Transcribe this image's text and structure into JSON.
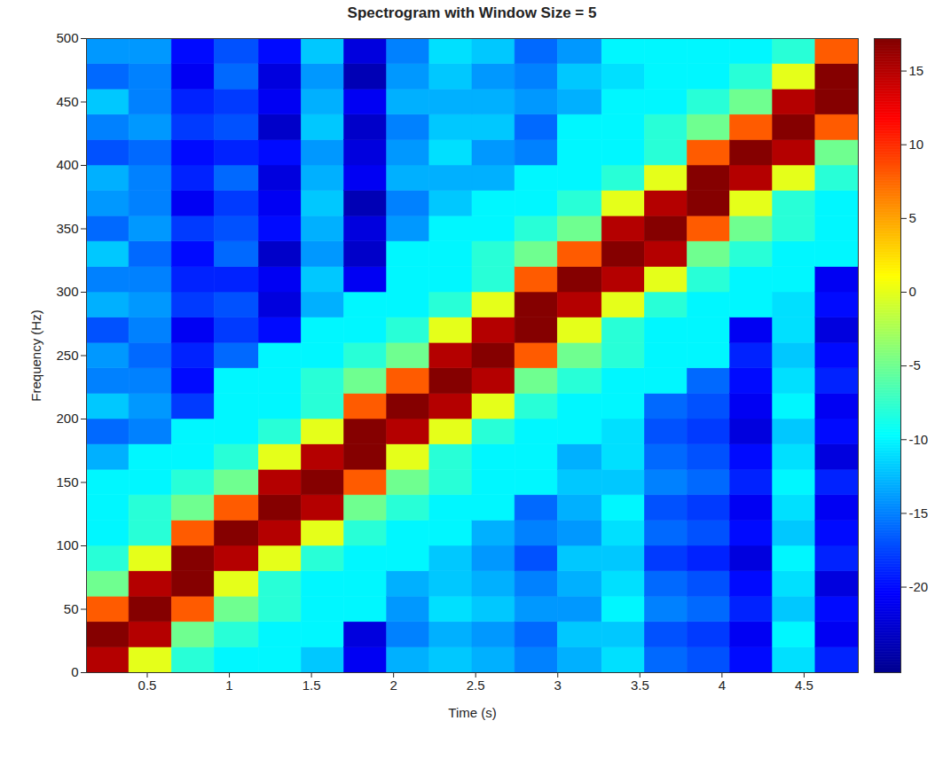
{
  "chart_data": {
    "type": "heatmap",
    "title": "Spectrogram with Window Size = 5",
    "x_label": "Time (s)",
    "y_label": "Frequency (Hz)",
    "xlim": [
      0.13,
      4.83
    ],
    "ylim": [
      0,
      500
    ],
    "xticks": [
      0.5,
      1,
      1.5,
      2,
      2.5,
      3,
      3.5,
      4,
      4.5
    ],
    "yticks": [
      0,
      50,
      100,
      150,
      200,
      250,
      300,
      350,
      400,
      450,
      500
    ],
    "x_edges": [
      0.13,
      0.39,
      0.65,
      0.91,
      1.18,
      1.44,
      1.7,
      1.96,
      2.22,
      2.48,
      2.74,
      3.0,
      3.27,
      3.53,
      3.79,
      4.05,
      4.31,
      4.57,
      4.83
    ],
    "y_edges": [
      0,
      20,
      40,
      60,
      80,
      100,
      120,
      140,
      160,
      180,
      200,
      220,
      240,
      260,
      280,
      300,
      320,
      340,
      360,
      380,
      400,
      420,
      440,
      460,
      480,
      500
    ],
    "z": [
      [
        15,
        17,
        8,
        -5,
        -8,
        -10,
        -10,
        -10,
        -13,
        -16,
        -12,
        -15,
        -14,
        -17,
        -13,
        -15,
        -12,
        -16,
        -14,
        -13,
        -17,
        -15,
        -12,
        -16,
        -14
      ],
      [
        0,
        15,
        17,
        15,
        0,
        -8,
        -8,
        -10,
        -10,
        -15,
        -14,
        -15,
        -16,
        -15,
        -14,
        -15,
        -16,
        -14,
        -15,
        -15,
        -16,
        -14,
        -15,
        -15,
        -14
      ],
      [
        -8,
        -5,
        8,
        17,
        17,
        8,
        -5,
        -8,
        -10,
        -10,
        -18,
        -20,
        -19,
        -21,
        -18,
        -19,
        -20,
        -18,
        -21,
        -19,
        -20,
        -18,
        -19,
        -21,
        -20
      ],
      [
        -10,
        -8,
        -5,
        0,
        15,
        17,
        8,
        -5,
        -8,
        -10,
        -10,
        -10,
        -16,
        -18,
        -17,
        -19,
        -16,
        -17,
        -18,
        -16,
        -19,
        -17,
        -18,
        -16,
        -17
      ],
      [
        -10,
        -10,
        -8,
        -8,
        0,
        15,
        17,
        15,
        0,
        -8,
        -10,
        -10,
        -10,
        -20,
        -22,
        -21,
        -23,
        -20,
        -21,
        -22,
        -20,
        -23,
        -21,
        -22,
        -20
      ],
      [
        -12,
        -10,
        -10,
        -10,
        -8,
        0,
        15,
        17,
        15,
        0,
        -8,
        -8,
        -10,
        -10,
        -13,
        -12,
        -14,
        -13,
        -12,
        -13,
        -14,
        -12,
        -13,
        -14,
        -12
      ],
      [
        -21,
        -22,
        -10,
        -10,
        -10,
        -8,
        -5,
        8,
        17,
        17,
        8,
        -5,
        -8,
        -10,
        -10,
        -21,
        -23,
        -22,
        -24,
        -21,
        -22,
        -23,
        -21,
        -24,
        -22
      ],
      [
        -13,
        -15,
        -14,
        -13,
        -10,
        -10,
        -8,
        -5,
        0,
        15,
        17,
        8,
        -5,
        -8,
        -10,
        -10,
        -10,
        -14,
        -15,
        -13,
        -14,
        -15,
        -13,
        -14,
        -15
      ],
      [
        -12,
        -13,
        -11,
        -12,
        -12,
        -10,
        -10,
        -8,
        -8,
        0,
        15,
        17,
        15,
        0,
        -8,
        -10,
        -10,
        -10,
        -12,
        -13,
        -11,
        -12,
        -13,
        -12,
        -11
      ],
      [
        -13,
        -14,
        -12,
        -13,
        -14,
        -13,
        -10,
        -10,
        -10,
        -8,
        0,
        15,
        17,
        15,
        0,
        -8,
        -8,
        -10,
        -10,
        -13,
        -14,
        -12,
        -13,
        -14,
        -12
      ],
      [
        -15,
        -16,
        -14,
        -15,
        -17,
        -15,
        -16,
        -10,
        -10,
        -10,
        -8,
        -5,
        8,
        17,
        17,
        8,
        -5,
        -8,
        -10,
        -10,
        -15,
        -16,
        -14,
        -15,
        -16
      ],
      [
        -13,
        -12,
        -14,
        -13,
        -12,
        -14,
        -13,
        -12,
        -13,
        -10,
        -10,
        -8,
        -5,
        0,
        15,
        17,
        8,
        -5,
        -8,
        -10,
        -10,
        -10,
        -13,
        -12,
        -14
      ],
      [
        -11,
        -12,
        -10,
        -11,
        -12,
        -11,
        -10,
        -12,
        -11,
        -11,
        -10,
        -10,
        -8,
        -8,
        0,
        15,
        17,
        15,
        0,
        -8,
        -10,
        -10,
        -10,
        -11,
        -10
      ],
      [
        -16,
        -17,
        -15,
        -16,
        -18,
        -16,
        -17,
        -15,
        -16,
        -17,
        -16,
        -10,
        -10,
        -10,
        -8,
        0,
        15,
        17,
        15,
        0,
        -8,
        -8,
        -10,
        -10,
        -10
      ],
      [
        -17,
        -18,
        -16,
        -17,
        -19,
        -17,
        -18,
        -16,
        -17,
        -18,
        -17,
        -16,
        -10,
        -10,
        -10,
        -8,
        -5,
        8,
        17,
        17,
        8,
        -5,
        -8,
        -10,
        -10
      ],
      [
        -20,
        -21,
        -19,
        -20,
        -22,
        -20,
        -21,
        -19,
        -20,
        -22,
        -21,
        -20,
        -19,
        -21,
        -10,
        -10,
        -8,
        -5,
        0,
        15,
        17,
        8,
        -5,
        -8,
        -10
      ],
      [
        -11,
        -10,
        -12,
        -11,
        -10,
        -12,
        -11,
        -10,
        -11,
        -12,
        -10,
        -11,
        -12,
        -11,
        -11,
        -10,
        -10,
        -8,
        -8,
        0,
        15,
        17,
        15,
        0,
        -8
      ],
      [
        -19,
        -21,
        -20,
        -22,
        -19,
        -20,
        -21,
        -19,
        -22,
        -20,
        -21,
        -19,
        -20,
        -22,
        -20,
        -21,
        -10,
        -10,
        -10,
        -8,
        -5,
        8,
        17,
        17,
        8
      ]
    ],
    "colorbar_range": [
      -25.8,
      17.2
    ],
    "colorbar_ticks": [
      -20,
      -15,
      -10,
      -5,
      0,
      5,
      10,
      15
    ]
  }
}
